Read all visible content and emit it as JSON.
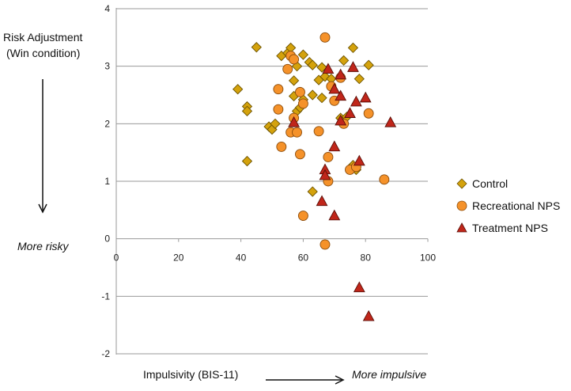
{
  "chart_data": {
    "type": "scatter",
    "title": "",
    "ylabel": "Risk Adjustment\n(Win condition)",
    "ylabel_lines": [
      "Risk Adjustment",
      "(Win condition)"
    ],
    "y_direction_label": "More risky",
    "xlabel": "Impulsivity (BIS-11)",
    "x_direction_label": "More impulsive",
    "xlim": [
      0,
      100
    ],
    "ylim": [
      -2,
      4
    ],
    "x_ticks": [
      0,
      20,
      40,
      60,
      80,
      100
    ],
    "y_ticks": [
      -2,
      -1,
      0,
      1,
      2,
      3,
      4
    ],
    "grid": "horizontal",
    "legend_position": "right",
    "series": [
      {
        "name": "Control",
        "marker": "diamond",
        "color": "#d4a20c",
        "points": [
          [
            45,
            3.33
          ],
          [
            53,
            3.18
          ],
          [
            55,
            3.23
          ],
          [
            56,
            3.32
          ],
          [
            60,
            3.2
          ],
          [
            62,
            3.07
          ],
          [
            63,
            3.02
          ],
          [
            58,
            3.0
          ],
          [
            66,
            2.98
          ],
          [
            76,
            3.32
          ],
          [
            73,
            3.1
          ],
          [
            81,
            3.02
          ],
          [
            78,
            2.78
          ],
          [
            57,
            2.75
          ],
          [
            65,
            2.76
          ],
          [
            67,
            2.82
          ],
          [
            69,
            2.78
          ],
          [
            39,
            2.6
          ],
          [
            42,
            2.3
          ],
          [
            42,
            2.22
          ],
          [
            57,
            2.48
          ],
          [
            60,
            2.42
          ],
          [
            63,
            2.5
          ],
          [
            66,
            2.45
          ],
          [
            58,
            2.22
          ],
          [
            59,
            2.28
          ],
          [
            49,
            1.95
          ],
          [
            50,
            1.9
          ],
          [
            51,
            2.0
          ],
          [
            72,
            2.1
          ],
          [
            74,
            2.12
          ],
          [
            42,
            1.35
          ],
          [
            63,
            0.82
          ],
          [
            77,
            1.2
          ],
          [
            76,
            1.28
          ]
        ]
      },
      {
        "name": "Recreational NPS",
        "marker": "circle",
        "color": "#f5922a",
        "points": [
          [
            67,
            3.5
          ],
          [
            56,
            3.18
          ],
          [
            55,
            2.95
          ],
          [
            57,
            3.12
          ],
          [
            52,
            2.6
          ],
          [
            52,
            2.25
          ],
          [
            53,
            1.6
          ],
          [
            56,
            1.85
          ],
          [
            58,
            1.85
          ],
          [
            59,
            2.55
          ],
          [
            60,
            2.35
          ],
          [
            59,
            1.47
          ],
          [
            57,
            2.1
          ],
          [
            65,
            1.87
          ],
          [
            68,
            1.42
          ],
          [
            68,
            1.0
          ],
          [
            60,
            0.4
          ],
          [
            67,
            -0.1
          ],
          [
            70,
            2.4
          ],
          [
            73,
            2.0
          ],
          [
            75,
            1.2
          ],
          [
            77,
            1.25
          ],
          [
            81,
            2.18
          ],
          [
            86,
            1.03
          ],
          [
            72,
            2.8
          ],
          [
            69,
            2.65
          ]
        ]
      },
      {
        "name": "Treatment NPS",
        "marker": "triangle",
        "color": "#c0261a",
        "points": [
          [
            57,
            2.02
          ],
          [
            68,
            2.95
          ],
          [
            72,
            2.85
          ],
          [
            76,
            2.98
          ],
          [
            72,
            2.48
          ],
          [
            70,
            2.6
          ],
          [
            77,
            2.38
          ],
          [
            80,
            2.45
          ],
          [
            75,
            2.18
          ],
          [
            72,
            2.05
          ],
          [
            88,
            2.02
          ],
          [
            70,
            1.6
          ],
          [
            67,
            1.2
          ],
          [
            67,
            1.1
          ],
          [
            78,
            1.35
          ],
          [
            66,
            0.65
          ],
          [
            70,
            0.4
          ],
          [
            78,
            -0.85
          ],
          [
            81,
            -1.35
          ]
        ]
      }
    ]
  }
}
